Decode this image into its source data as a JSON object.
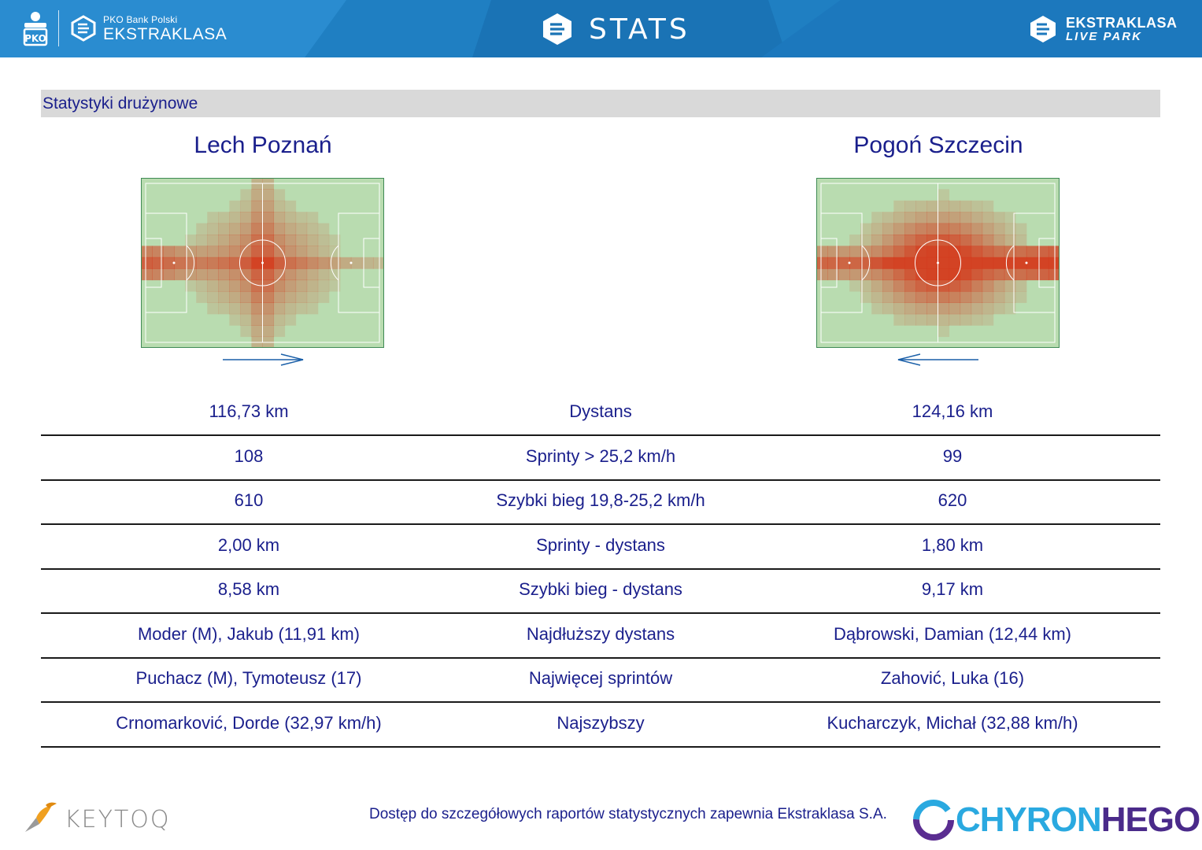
{
  "header": {
    "left_logo_small": "PKO Bank Polski",
    "left_logo_big": "EKSTRAKLASA",
    "title": "STATS",
    "right_logo_top": "EKSTRAKLASA",
    "right_logo_bottom": "LIVE PARK"
  },
  "section": {
    "title": "Statystyki drużynowe"
  },
  "teams": {
    "home": {
      "name": "Lech Poznań",
      "attack_direction": "right"
    },
    "away": {
      "name": "Pogoń Szczecin",
      "attack_direction": "left"
    }
  },
  "stats": [
    {
      "home": "116,73 km",
      "label": "Dystans",
      "away": "124,16 km"
    },
    {
      "home": "108",
      "label": "Sprinty > 25,2 km/h",
      "away": "99"
    },
    {
      "home": "610",
      "label": "Szybki bieg 19,8-25,2 km/h",
      "away": "620"
    },
    {
      "home": "2,00 km",
      "label": "Sprinty - dystans",
      "away": "1,80 km"
    },
    {
      "home": "8,58 km",
      "label": "Szybki bieg - dystans",
      "away": "9,17 km"
    },
    {
      "home": "Moder (M), Jakub (11,91 km)",
      "label": "Najdłuższy dystans",
      "away": "Dąbrowski, Damian (12,44 km)"
    },
    {
      "home": "Puchacz (M), Tymoteusz (17)",
      "label": "Najwięcej sprintów",
      "away": "Zahović, Luka (16)"
    },
    {
      "home": "Crnomarković, Dorde (32,97 km/h)",
      "label": "Najszybszy",
      "away": "Kucharczyk, Michał (32,88 km/h)"
    }
  ],
  "footer": {
    "note": "Dostęp do szczegółowych raportów statystycznych zapewnia Ekstraklasa S.A.",
    "left_logo": "KEYTOQ",
    "right_logo_a": "CHYRON",
    "right_logo_b": "HEGO"
  },
  "colors": {
    "header_blue": "#1f7fc2",
    "text_navy": "#1a1f8c",
    "pitch_green": "#b9dcb0",
    "heat_red": "#d43a1c"
  }
}
